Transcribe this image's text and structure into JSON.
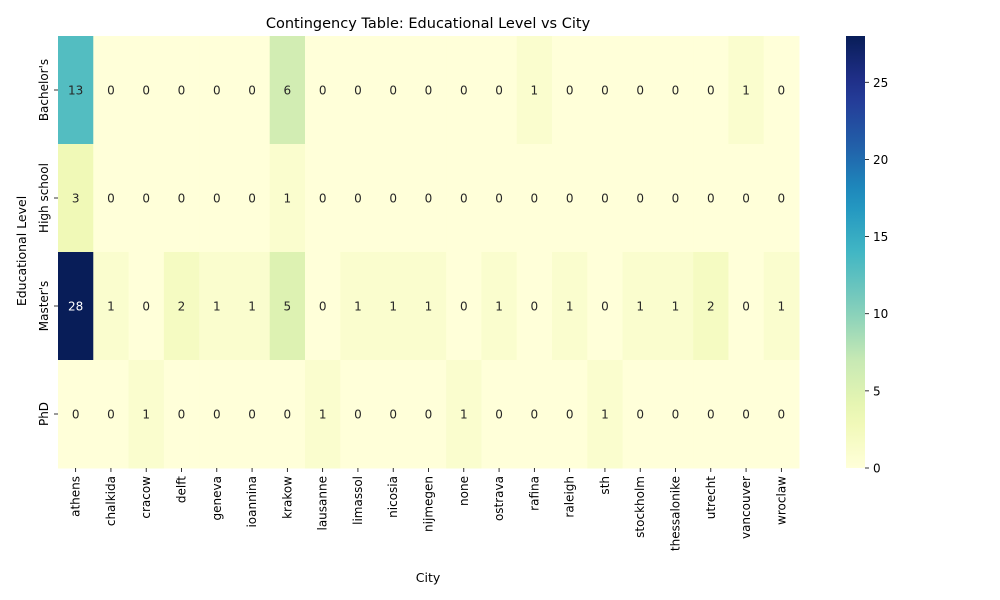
{
  "chart_data": {
    "type": "heatmap",
    "title": "Contingency Table: Educational Level vs City",
    "xlabel": "City",
    "ylabel": "Educational Level",
    "columns": [
      "athens",
      "chalkida",
      "cracow",
      "delft",
      "geneva",
      "ioannina",
      "krakow",
      "lausanne",
      "limassol",
      "nicosia",
      "nijmegen",
      "none",
      "ostrava",
      "rafina",
      "raleigh",
      "sth",
      "stockholm",
      "thessalonike",
      "utrecht",
      "vancouver",
      "wroclaw"
    ],
    "rows": [
      "Bachelor's",
      "High school",
      "Master's",
      "PhD"
    ],
    "values": [
      [
        13,
        0,
        0,
        0,
        0,
        0,
        6,
        0,
        0,
        0,
        0,
        0,
        0,
        1,
        0,
        0,
        0,
        0,
        0,
        1,
        0
      ],
      [
        3,
        0,
        0,
        0,
        0,
        0,
        1,
        0,
        0,
        0,
        0,
        0,
        0,
        0,
        0,
        0,
        0,
        0,
        0,
        0,
        0
      ],
      [
        28,
        1,
        0,
        2,
        1,
        1,
        5,
        0,
        1,
        1,
        1,
        0,
        1,
        0,
        1,
        0,
        1,
        1,
        2,
        0,
        1
      ],
      [
        0,
        0,
        1,
        0,
        0,
        0,
        0,
        1,
        0,
        0,
        0,
        1,
        0,
        0,
        0,
        1,
        0,
        0,
        0,
        0,
        0
      ]
    ],
    "colormap": "YlGnBu",
    "value_range": [
      0,
      28
    ],
    "colorbar_ticks": [
      0,
      5,
      10,
      15,
      20,
      25
    ],
    "annotations": true
  }
}
